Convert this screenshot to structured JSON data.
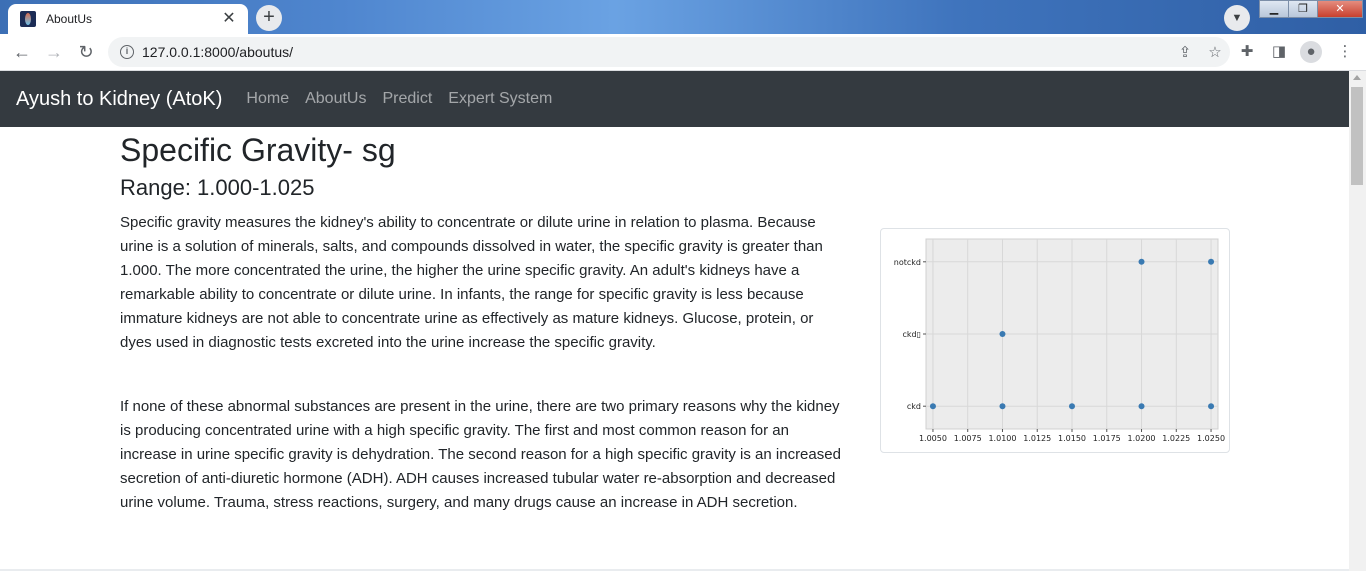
{
  "browser": {
    "tab_title": "AboutUs",
    "url": "127.0.0.1:8000/aboutus/"
  },
  "site": {
    "brand": "Ayush to Kidney (AtoK)",
    "nav": [
      "Home",
      "AboutUs",
      "Predict",
      "Expert System"
    ]
  },
  "content": {
    "title": "Specific Gravity- sg",
    "range": "Range: 1.000-1.025",
    "paragraph1": "Specific gravity measures the kidney's ability to concentrate or dilute urine in relation to plasma. Because urine is a solution of minerals, salts, and compounds dissolved in water, the specific gravity is greater than 1.000. The more concentrated the urine, the higher the urine specific gravity. An adult's kidneys have a remarkable ability to concentrate or dilute urine. In infants, the range for specific gravity is less because immature kidneys are not able to concentrate urine as effectively as mature kidneys. Glucose, protein, or dyes used in diagnostic tests excreted into the urine increase the specific gravity.",
    "paragraph2": "If none of these abnormal substances are present in the urine, there are two primary reasons why the kidney is producing concentrated urine with a high specific gravity. The first and most common reason for an increase in urine specific gravity is dehydration. The second reason for a high specific gravity is an increased secretion of anti-diuretic hormone (ADH). ADH causes increased tubular water re-absorption and decreased urine volume. Trauma, stress reactions, surgery, and many drugs cause an increase in ADH secretion."
  },
  "chart_data": {
    "type": "scatter",
    "categories": [
      "ckd",
      "ckd\t",
      "notckd"
    ],
    "category_labels": [
      "ckd",
      "ckd▯",
      "notckd"
    ],
    "x_ticks": [
      "1.0050",
      "1.0075",
      "1.0100",
      "1.0125",
      "1.0150",
      "1.0175",
      "1.0200",
      "1.0225",
      "1.0250"
    ],
    "xlim": [
      1.0045,
      1.0255
    ],
    "points": [
      {
        "x": 1.005,
        "y": "ckd"
      },
      {
        "x": 1.01,
        "y": "ckd"
      },
      {
        "x": 1.015,
        "y": "ckd"
      },
      {
        "x": 1.02,
        "y": "ckd"
      },
      {
        "x": 1.025,
        "y": "ckd"
      },
      {
        "x": 1.01,
        "y": "ckd\t"
      },
      {
        "x": 1.02,
        "y": "notckd"
      },
      {
        "x": 1.025,
        "y": "notckd"
      }
    ],
    "grid": true,
    "point_color": "#3a7ab2",
    "background": "#ececec"
  }
}
